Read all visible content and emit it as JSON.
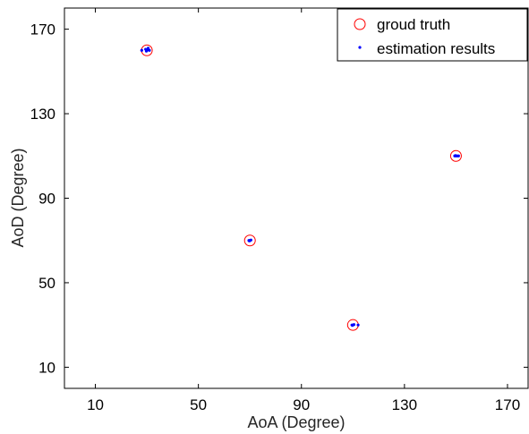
{
  "chart_data": {
    "type": "scatter",
    "title": "",
    "xlabel": "AoA (Degree)",
    "ylabel": "AoD (Degree)",
    "xlim": [
      -2,
      178
    ],
    "ylim": [
      0,
      180
    ],
    "xticks": [
      10,
      50,
      90,
      130,
      170
    ],
    "yticks": [
      10,
      50,
      90,
      130,
      170
    ],
    "grid": false,
    "legend_position": "top-right",
    "series": [
      {
        "name": "groud truth",
        "marker": "open-circle",
        "color": "#ff0000",
        "points": [
          [
            30,
            160
          ],
          [
            70,
            70
          ],
          [
            110,
            30
          ],
          [
            150,
            110
          ]
        ]
      },
      {
        "name": "estimation results",
        "marker": "dot",
        "color": "#0000ff",
        "points": [
          [
            28,
            160
          ],
          [
            29.5,
            160.5
          ],
          [
            30,
            160
          ],
          [
            30.5,
            161
          ],
          [
            31,
            160
          ],
          [
            29.8,
            159.6
          ],
          [
            69.6,
            70
          ],
          [
            70,
            70
          ],
          [
            70.4,
            70.2
          ],
          [
            69.8,
            69.8
          ],
          [
            109.6,
            30
          ],
          [
            110,
            30
          ],
          [
            110.4,
            30.2
          ],
          [
            112,
            30
          ],
          [
            109.8,
            29.8
          ],
          [
            149.5,
            110
          ],
          [
            150,
            110
          ],
          [
            150.5,
            110
          ],
          [
            151,
            110
          ],
          [
            149.8,
            110.2
          ]
        ]
      }
    ]
  }
}
